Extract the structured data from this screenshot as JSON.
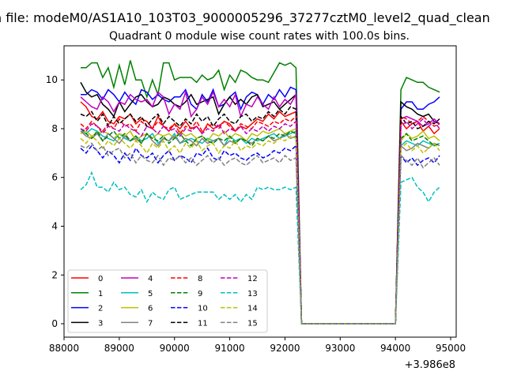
{
  "chart_data": {
    "type": "line",
    "suptitle": "n file: modeM0/AS1A10_103T03_9000005296_37277cztM0_level2_quad_clean",
    "title": "Quadrant 0 module wise count rates with 100.0s bins.",
    "xlabel": "",
    "ylabel": "",
    "x_offset_label": "+3.986e8",
    "xlim": [
      88000,
      95100
    ],
    "ylim": [
      -0.55,
      11.4
    ],
    "x_ticks": [
      88000,
      89000,
      90000,
      91000,
      92000,
      93000,
      94000,
      95000
    ],
    "x_tick_labels": [
      "88000",
      "89000",
      "90000",
      "91000",
      "92000",
      "93000",
      "94000",
      "95000"
    ],
    "y_ticks": [
      0,
      2,
      4,
      6,
      8,
      10
    ],
    "y_tick_labels": [
      "0",
      "2",
      "4",
      "6",
      "8",
      "10"
    ],
    "grid": false,
    "legend_placement": "lower-left",
    "legend_columns": 4,
    "x_start": 88300,
    "x_step": 100,
    "n_points_per_segment": 40,
    "gap_start": 92300,
    "gap_end": 94000,
    "x_end": 94800,
    "series": [
      {
        "name": "0",
        "color": "#ff0000",
        "dash": "solid",
        "seg1": [
          9.1,
          8.9,
          8.5,
          8.4,
          8.7,
          8.3,
          8.2,
          8.5,
          8.4,
          8.6,
          8.2,
          8.4,
          8.3,
          8.0,
          8.5,
          8.1,
          7.9,
          8.2,
          8.0,
          8.3,
          8.0,
          8.1,
          7.8,
          8.2,
          8.0,
          8.1,
          8.3,
          8.2,
          7.9,
          8.1,
          8.0,
          8.2,
          8.4,
          8.3,
          8.6,
          8.4,
          8.7,
          8.5,
          8.6,
          8.7
        ],
        "seg2": [
          8.3,
          8.0,
          8.2,
          8.3,
          7.9,
          8.1,
          7.8,
          8.0,
          8.2
        ]
      },
      {
        "name": "1",
        "color": "#008000",
        "dash": "solid",
        "seg1": [
          10.5,
          10.5,
          10.7,
          10.7,
          10.1,
          10.5,
          9.7,
          10.6,
          9.8,
          10.8,
          10.0,
          10.0,
          9.3,
          10.0,
          9.4,
          10.7,
          10.7,
          10.0,
          10.1,
          10.1,
          10.1,
          9.9,
          10.2,
          10.0,
          10.1,
          10.4,
          9.6,
          10.2,
          9.9,
          10.4,
          10.3,
          10.1,
          10.0,
          10.0,
          9.9,
          10.3,
          10.7,
          10.6,
          10.7,
          10.5
        ],
        "seg2": [
          9.6,
          10.1,
          10.0,
          9.9,
          9.9,
          9.7,
          9.6,
          9.5,
          9.4
        ]
      },
      {
        "name": "2",
        "color": "#0000ff",
        "dash": "solid",
        "seg1": [
          9.4,
          9.4,
          9.6,
          9.5,
          9.2,
          9.6,
          9.4,
          9.1,
          9.5,
          9.2,
          9.0,
          9.6,
          9.5,
          9.2,
          9.4,
          9.2,
          9.1,
          9.3,
          9.3,
          9.6,
          9.0,
          8.8,
          9.4,
          9.1,
          9.6,
          8.9,
          9.0,
          9.3,
          9.5,
          8.8,
          9.3,
          9.5,
          9.4,
          9.0,
          9.4,
          9.2,
          9.6,
          9.3,
          9.7,
          9.6
        ],
        "seg2": [
          8.8,
          9.1,
          9.1,
          8.8,
          8.8,
          9.0,
          9.1,
          9.3,
          8.9
        ]
      },
      {
        "name": "3",
        "color": "#000000",
        "dash": "solid",
        "seg1": [
          9.9,
          9.5,
          9.3,
          9.4,
          9.0,
          8.8,
          8.5,
          9.1,
          8.7,
          9.0,
          9.3,
          9.4,
          9.1,
          8.9,
          9.0,
          9.3,
          9.2,
          9.0,
          8.9,
          9.1,
          9.4,
          9.0,
          9.1,
          9.2,
          9.3,
          8.6,
          9.0,
          9.3,
          9.0,
          9.2,
          9.0,
          9.3,
          9.4,
          8.9,
          9.0,
          9.1,
          8.8,
          9.0,
          9.2,
          9.4
        ],
        "seg2": [
          9.1,
          8.9,
          8.8,
          8.6,
          8.5,
          8.6,
          8.3,
          8.2,
          8.1
        ]
      },
      {
        "name": "4",
        "color": "#bf00bf",
        "dash": "solid",
        "seg1": [
          9.3,
          9.1,
          8.9,
          8.8,
          9.3,
          9.1,
          8.7,
          9.1,
          9.0,
          9.4,
          9.2,
          9.1,
          9.2,
          8.9,
          9.5,
          9.3,
          8.6,
          9.0,
          8.8,
          9.5,
          8.5,
          8.8,
          9.3,
          9.0,
          9.5,
          8.9,
          9.2,
          8.9,
          9.4,
          8.5,
          9.0,
          8.9,
          9.3,
          9.0,
          8.8,
          9.3,
          8.9,
          9.2,
          9.0,
          9.4
        ],
        "seg2": [
          8.4,
          8.5,
          8.4,
          8.3,
          8.1,
          8.2,
          8.4,
          8.2,
          8.6
        ]
      },
      {
        "name": "5",
        "color": "#00bfbf",
        "dash": "solid",
        "seg1": [
          7.9,
          7.8,
          8.0,
          7.9,
          7.7,
          7.6,
          7.5,
          7.8,
          7.6,
          7.5,
          7.7,
          7.5,
          7.6,
          7.8,
          7.4,
          7.6,
          7.5,
          7.8,
          7.4,
          7.5,
          7.6,
          7.5,
          7.4,
          7.6,
          7.5,
          7.6,
          7.3,
          7.7,
          7.5,
          7.6,
          7.4,
          7.6,
          7.5,
          7.6,
          7.7,
          7.8,
          7.6,
          7.7,
          7.8,
          7.9
        ],
        "seg2": [
          7.3,
          7.5,
          7.4,
          7.3,
          7.5,
          7.4,
          7.3,
          7.4,
          7.2
        ]
      },
      {
        "name": "6",
        "color": "#bfbf00",
        "dash": "solid",
        "seg1": [
          7.8,
          7.9,
          7.7,
          7.8,
          7.9,
          7.8,
          7.6,
          7.8,
          7.7,
          7.9,
          7.5,
          7.7,
          7.8,
          7.6,
          7.8,
          7.7,
          7.8,
          7.6,
          7.9,
          7.7,
          7.8,
          7.6,
          7.7,
          7.5,
          7.8,
          7.7,
          7.9,
          7.6,
          7.8,
          7.7,
          7.5,
          7.8,
          7.7,
          7.9,
          7.8,
          7.9,
          8.0,
          7.8,
          7.9,
          8.0
        ],
        "seg2": [
          7.5,
          7.8,
          7.6,
          7.7,
          7.9,
          7.6,
          7.7,
          7.5,
          7.6
        ]
      },
      {
        "name": "7",
        "color": "#808080",
        "dash": "solid",
        "seg1": [
          7.9,
          7.7,
          7.6,
          7.8,
          7.5,
          7.8,
          7.6,
          7.4,
          7.7,
          7.5,
          7.6,
          7.4,
          7.8,
          7.5,
          7.3,
          7.6,
          7.5,
          7.7,
          7.4,
          7.6,
          7.5,
          7.3,
          7.6,
          7.4,
          7.5,
          7.6,
          7.3,
          7.5,
          7.4,
          7.6,
          7.5,
          7.4,
          7.6,
          7.5,
          7.7,
          7.5,
          7.6,
          7.8,
          7.6,
          7.7
        ],
        "seg2": [
          7.3,
          7.1,
          7.2,
          7.4,
          7.3,
          7.2,
          7.4,
          7.3,
          7.5
        ]
      },
      {
        "name": "8",
        "color": "#ff0000",
        "dash": "dashed",
        "seg1": [
          8.2,
          8.0,
          8.3,
          8.1,
          7.9,
          8.2,
          8.0,
          8.4,
          8.1,
          8.2,
          7.9,
          8.3,
          8.1,
          8.0,
          8.3,
          8.1,
          8.0,
          8.2,
          7.8,
          8.1,
          8.0,
          8.3,
          7.9,
          8.1,
          8.2,
          8.0,
          8.3,
          8.1,
          7.9,
          8.2,
          8.1,
          8.0,
          8.3,
          8.2,
          8.1,
          8.3,
          8.2,
          8.4,
          8.3,
          8.5
        ],
        "seg2": [
          8.5,
          8.4,
          8.2,
          8.3,
          8.5,
          8.3,
          8.1,
          8.2,
          8.0
        ]
      },
      {
        "name": "9",
        "color": "#008000",
        "dash": "dashed",
        "seg1": [
          8.0,
          7.8,
          7.6,
          7.9,
          7.5,
          7.7,
          7.9,
          7.6,
          7.8,
          7.5,
          7.7,
          7.4,
          7.8,
          7.6,
          7.5,
          7.7,
          7.4,
          7.6,
          7.8,
          7.5,
          7.3,
          7.6,
          7.7,
          7.5,
          7.4,
          7.6,
          7.5,
          7.7,
          7.4,
          7.6,
          7.5,
          7.3,
          7.6,
          7.5,
          7.7,
          7.6,
          7.8,
          7.7,
          7.9,
          7.8
        ],
        "seg2": [
          7.6,
          7.8,
          7.5,
          7.6,
          7.7,
          7.5,
          7.3,
          7.4,
          7.5
        ]
      },
      {
        "name": "10",
        "color": "#0000ff",
        "dash": "dashed",
        "seg1": [
          7.2,
          7.0,
          7.3,
          7.1,
          6.8,
          7.1,
          6.9,
          6.6,
          7.0,
          6.7,
          7.2,
          6.9,
          6.8,
          7.0,
          6.6,
          6.9,
          7.1,
          6.7,
          6.9,
          6.8,
          6.6,
          7.0,
          6.9,
          7.2,
          6.8,
          6.7,
          7.1,
          6.9,
          7.0,
          6.8,
          6.7,
          6.9,
          7.0,
          6.8,
          6.9,
          7.1,
          7.0,
          7.2,
          7.1,
          7.3
        ],
        "seg2": [
          6.9,
          6.6,
          6.8,
          6.5,
          6.7,
          6.8,
          6.6,
          6.9,
          6.4
        ]
      },
      {
        "name": "11",
        "color": "#000000",
        "dash": "dashed",
        "seg1": [
          8.6,
          8.5,
          8.7,
          8.3,
          8.6,
          8.1,
          8.5,
          8.2,
          8.4,
          8.6,
          8.3,
          8.5,
          8.1,
          8.4,
          8.6,
          8.2,
          8.5,
          8.3,
          8.1,
          8.4,
          8.2,
          8.6,
          8.3,
          8.5,
          8.1,
          8.4,
          8.6,
          8.3,
          8.2,
          8.5,
          8.6,
          8.3,
          8.5,
          8.4,
          8.7,
          8.5,
          8.8,
          8.6,
          8.9,
          8.8
        ],
        "seg2": [
          8.5,
          8.2,
          8.3,
          8.0,
          8.1,
          8.3,
          8.2,
          8.4,
          8.2
        ]
      },
      {
        "name": "12",
        "color": "#bf00bf",
        "dash": "dashed",
        "seg1": [
          8.0,
          7.9,
          8.2,
          8.1,
          7.8,
          8.1,
          8.0,
          7.9,
          8.2,
          8.0,
          7.9,
          7.7,
          8.1,
          8.0,
          7.8,
          8.1,
          7.9,
          8.0,
          7.7,
          8.0,
          7.9,
          8.1,
          7.8,
          8.0,
          7.9,
          8.2,
          7.8,
          8.0,
          7.9,
          8.1,
          7.8,
          8.0,
          7.9,
          8.1,
          7.9,
          8.1,
          8.0,
          8.2,
          8.1,
          8.3
        ],
        "seg2": [
          8.1,
          8.3,
          8.0,
          8.2,
          8.4,
          8.1,
          8.3,
          8.0,
          8.2
        ]
      },
      {
        "name": "13",
        "color": "#00bfbf",
        "dash": "dashed",
        "seg1": [
          5.5,
          5.7,
          6.2,
          5.6,
          5.6,
          5.4,
          5.8,
          5.5,
          5.6,
          5.3,
          5.2,
          5.5,
          5.0,
          5.4,
          5.2,
          5.1,
          5.5,
          5.6,
          5.1,
          5.2,
          5.3,
          5.4,
          5.4,
          5.4,
          5.4,
          5.1,
          5.3,
          5.1,
          5.3,
          5.0,
          5.3,
          5.1,
          5.6,
          5.5,
          5.6,
          5.5,
          5.5,
          5.6,
          5.5,
          5.6
        ],
        "seg2": [
          5.8,
          5.9,
          6.0,
          5.6,
          5.4,
          5.0,
          5.4,
          5.6,
          5.7
        ]
      },
      {
        "name": "14",
        "color": "#bfbf00",
        "dash": "dashed",
        "seg1": [
          7.6,
          7.4,
          7.7,
          7.5,
          7.2,
          7.5,
          7.3,
          7.6,
          7.4,
          7.2,
          7.5,
          7.3,
          7.0,
          7.4,
          7.2,
          7.5,
          7.1,
          7.3,
          7.0,
          7.4,
          7.2,
          7.5,
          7.1,
          7.3,
          7.4,
          7.0,
          7.3,
          7.2,
          7.5,
          7.1,
          7.3,
          7.2,
          7.4,
          7.3,
          7.5,
          7.4,
          7.6,
          7.5,
          7.7,
          7.6
        ],
        "seg2": [
          7.2,
          7.4,
          7.1,
          7.3,
          7.0,
          7.2,
          7.4,
          7.1,
          7.3
        ]
      },
      {
        "name": "15",
        "color": "#808080",
        "dash": "dashed",
        "seg1": [
          7.3,
          7.2,
          7.4,
          7.1,
          7.3,
          6.9,
          7.1,
          7.2,
          6.8,
          7.0,
          6.6,
          6.9,
          6.7,
          6.6,
          6.9,
          6.5,
          6.8,
          6.7,
          6.9,
          6.6,
          6.8,
          6.5,
          6.7,
          6.9,
          6.6,
          6.8,
          6.5,
          6.7,
          6.8,
          6.6,
          6.5,
          6.7,
          6.9,
          6.6,
          6.7,
          6.8,
          6.6,
          6.9,
          6.7,
          6.8
        ],
        "seg2": [
          6.9,
          6.7,
          6.5,
          6.8,
          6.4,
          6.6,
          6.8,
          6.5,
          6.7
        ]
      }
    ]
  }
}
